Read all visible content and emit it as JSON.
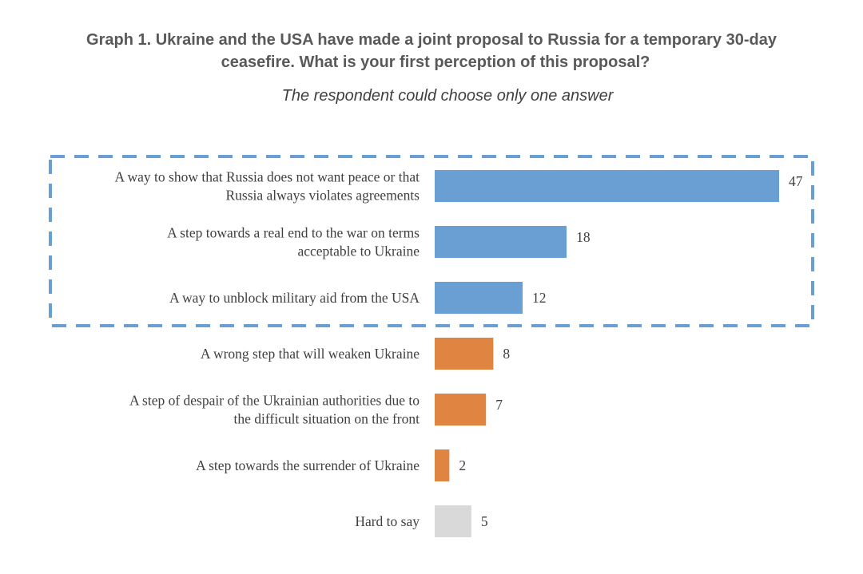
{
  "chart_data": {
    "type": "bar",
    "orientation": "horizontal",
    "title_line1": "Graph 1. Ukraine and the USA have made a joint proposal to Russia for a temporary 30-day",
    "title_line2": "ceasefire. What is your first perception of this proposal?",
    "subtitle": "The respondent could choose only one answer",
    "categories": [
      [
        "A way to show that Russia does not want peace or that",
        "Russia always violates agreements"
      ],
      [
        "A step towards a real end to the war on terms",
        "acceptable to Ukraine"
      ],
      [
        "A way to unblock military aid from the USA"
      ],
      [
        "A wrong step that will weaken Ukraine"
      ],
      [
        "A step of despair of the Ukrainian authorities due to",
        "the difficult situation on the front"
      ],
      [
        "A step towards the surrender of Ukraine"
      ],
      [
        "Hard to say"
      ]
    ],
    "values": [
      47,
      18,
      12,
      8,
      7,
      2,
      5
    ],
    "value_labels": [
      "47",
      "18",
      "12",
      "8",
      "7",
      "2",
      "5"
    ],
    "bar_colors": [
      "#6a9fd4",
      "#6a9fd4",
      "#6a9fd4",
      "#e08442",
      "#e08442",
      "#e08442",
      "#d9d9d9"
    ],
    "highlight_box_color": "#6a9fd4",
    "highlighted_categories": 3,
    "xlim": [
      0,
      47
    ],
    "grid": false,
    "legend": "none"
  }
}
